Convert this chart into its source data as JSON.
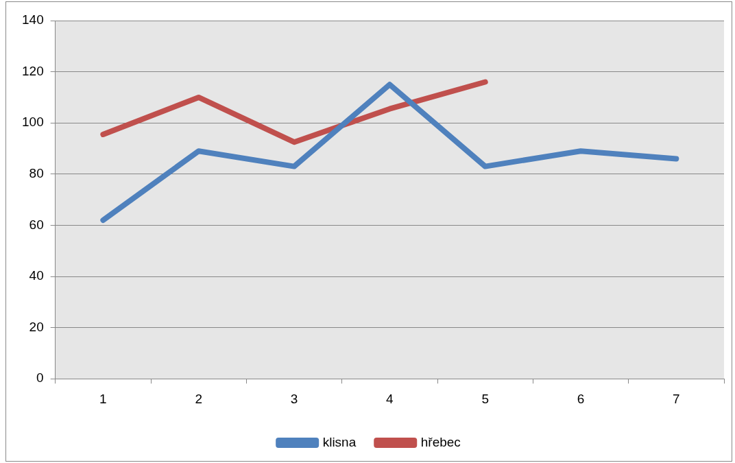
{
  "chart_data": {
    "type": "line",
    "categories": [
      "1",
      "2",
      "3",
      "4",
      "5",
      "6",
      "7"
    ],
    "series": [
      {
        "name": "klisna",
        "color": "#4f81bd",
        "values": [
          62,
          89,
          83,
          115,
          83,
          89,
          86
        ]
      },
      {
        "name": "hřebec",
        "color": "#c0504d",
        "values": [
          95.5,
          110,
          92.5,
          105.5,
          116,
          null,
          null
        ]
      }
    ],
    "ylim": [
      0,
      140
    ],
    "yticks": [
      0,
      20,
      40,
      60,
      80,
      100,
      120,
      140
    ],
    "grid": "y",
    "legend": "bottom",
    "marker": "none",
    "line_style": "solid"
  }
}
